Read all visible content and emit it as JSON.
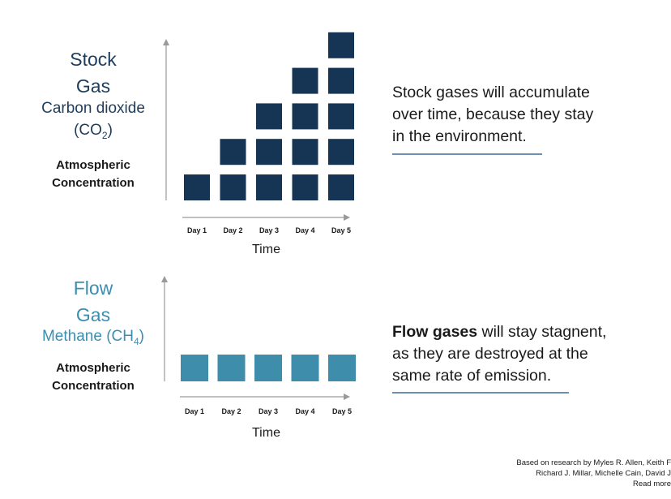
{
  "colors": {
    "stock": "#163454",
    "flow": "#3e8daa",
    "axis": "#9a9a9a"
  },
  "stock": {
    "title1": "Stock",
    "title2": "Gas",
    "subtitle": "Carbon dioxide",
    "formula_pre": "(CO",
    "formula_sub": "2",
    "formula_post": ")",
    "ylabel1": "Atmospheric",
    "ylabel2": "Concentration",
    "xlabel": "Time",
    "description": [
      "Stock gases will accumulate",
      "over time, because they stay",
      "in the environment."
    ]
  },
  "flow": {
    "title1": "Flow",
    "title2": "Gas",
    "subtitle_pre": "Methane (CH",
    "subtitle_sub": "4",
    "subtitle_post": ")",
    "ylabel1": "Atmospheric",
    "ylabel2": "Concentration",
    "xlabel": "Time",
    "description_bold": "Flow gases",
    "description_rest": " will stay stagnent,",
    "description": [
      "as they are destroyed at the",
      "same rate of emission."
    ]
  },
  "footer": {
    "line1": "Based on research by Myles R. Allen, Keith F",
    "line2": "Richard J. Millar, Michelle Cain, David J",
    "line3": "Read more"
  },
  "chart_data": [
    {
      "type": "bar",
      "categories": [
        "Day 1",
        "Day 2",
        "Day 3",
        "Day 4",
        "Day 5"
      ],
      "values": [
        1,
        2,
        3,
        4,
        5
      ],
      "xlabel": "Time",
      "ylabel": "Atmospheric Concentration"
    },
    {
      "type": "bar",
      "categories": [
        "Day 1",
        "Day 2",
        "Day 3",
        "Day 4",
        "Day 5"
      ],
      "values": [
        1,
        1,
        1,
        1,
        1
      ],
      "xlabel": "Time",
      "ylabel": "Atmospheric Concentration"
    }
  ]
}
